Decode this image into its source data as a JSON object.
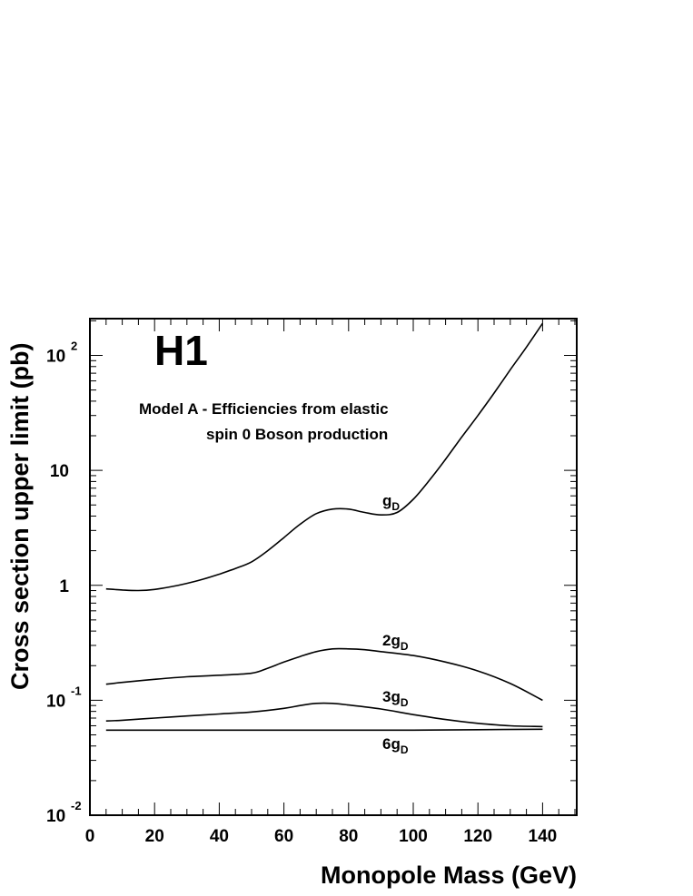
{
  "chart_data": {
    "type": "line",
    "logo": "H1",
    "annotation": [
      "Model A - Efficiencies from elastic",
      "spin 0 Boson production"
    ],
    "xlabel": "Monopole Mass (GeV)",
    "ylabel": "Cross section upper limit (pb)",
    "xlim": [
      0,
      150
    ],
    "ylim": [
      0.01,
      200
    ],
    "y_scale": "log",
    "x_ticks": [
      "0",
      "20",
      "40",
      "60",
      "80",
      "100",
      "120",
      "140"
    ],
    "y_ticks": [
      {
        "base": "10",
        "exp": "-2"
      },
      {
        "base": "10",
        "exp": "-1"
      },
      {
        "base": "1",
        "exp": ""
      },
      {
        "base": "10",
        "exp": ""
      },
      {
        "base": "10",
        "exp": "2"
      }
    ],
    "grid": false,
    "series": [
      {
        "name": "gD",
        "label_main": "g",
        "label_sub": "D",
        "x": [
          5,
          10,
          15,
          20,
          25,
          30,
          35,
          40,
          45,
          50,
          55,
          60,
          65,
          70,
          75,
          80,
          85,
          90,
          95,
          100,
          105,
          110,
          115,
          120,
          125,
          130,
          135,
          140
        ],
        "y": [
          0.93,
          0.91,
          0.9,
          0.92,
          0.97,
          1.04,
          1.13,
          1.25,
          1.4,
          1.6,
          2.0,
          2.6,
          3.4,
          4.2,
          4.6,
          4.6,
          4.3,
          4.1,
          4.3,
          5.6,
          8.2,
          12.5,
          19.5,
          30,
          47,
          75,
          118,
          190
        ]
      },
      {
        "name": "2gD",
        "label_main": "2g",
        "label_sub": "D",
        "x": [
          5,
          10,
          20,
          30,
          40,
          50,
          55,
          60,
          65,
          70,
          75,
          80,
          85,
          90,
          100,
          110,
          120,
          130,
          140
        ],
        "y": [
          0.138,
          0.143,
          0.152,
          0.16,
          0.165,
          0.172,
          0.19,
          0.215,
          0.24,
          0.265,
          0.28,
          0.28,
          0.275,
          0.265,
          0.245,
          0.215,
          0.18,
          0.14,
          0.1
        ]
      },
      {
        "name": "3gD",
        "label_main": "3g",
        "label_sub": "D",
        "x": [
          5,
          10,
          20,
          30,
          40,
          50,
          60,
          65,
          70,
          75,
          80,
          90,
          100,
          110,
          120,
          130,
          140
        ],
        "y": [
          0.066,
          0.067,
          0.07,
          0.073,
          0.076,
          0.079,
          0.085,
          0.09,
          0.094,
          0.094,
          0.091,
          0.084,
          0.075,
          0.068,
          0.063,
          0.06,
          0.059
        ]
      },
      {
        "name": "6gD",
        "label_main": "6g",
        "label_sub": "D",
        "x": [
          5,
          20,
          40,
          60,
          80,
          100,
          120,
          140
        ],
        "y": [
          0.055,
          0.055,
          0.055,
          0.055,
          0.055,
          0.055,
          0.0555,
          0.056
        ]
      }
    ]
  }
}
